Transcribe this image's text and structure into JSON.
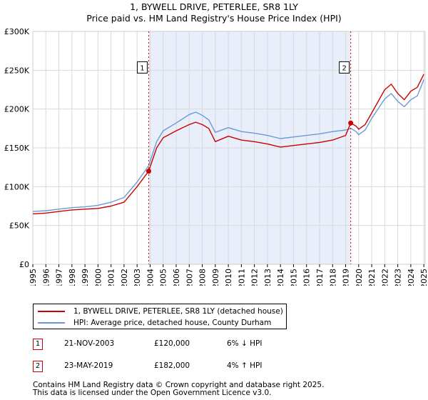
{
  "title": "1, BYWELL DRIVE, PETERLEE, SR8 1LY",
  "subtitle": "Price paid vs. HM Land Registry's House Price Index (HPI)",
  "colors": {
    "property": "#cc0000",
    "hpi": "#6b9ad6",
    "shade": "#e8eefa",
    "marker_line": "#cc0000"
  },
  "legend": {
    "property_label": "1, BYWELL DRIVE, PETERLEE, SR8 1LY (detached house)",
    "hpi_label": "HPI: Average price, detached house, County Durham"
  },
  "transactions": [
    {
      "num": "1",
      "date": "21-NOV-2003",
      "price": "£120,000",
      "change": "6% ↓ HPI"
    },
    {
      "num": "2",
      "date": "23-MAY-2019",
      "price": "£182,000",
      "change": "4% ↑ HPI"
    }
  ],
  "footer": {
    "line1": "Contains HM Land Registry data © Crown copyright and database right 2025.",
    "line2": "This data is licensed under the Open Government Licence v3.0."
  },
  "chart_data": {
    "type": "line",
    "title": "1, BYWELL DRIVE, PETERLEE, SR8 1LY",
    "subtitle": "Price paid vs. HM Land Registry's House Price Index (HPI)",
    "xlabel": "",
    "ylabel": "",
    "xlim": [
      1995,
      2025.1
    ],
    "ylim": [
      0,
      300000
    ],
    "x_ticks": [
      "1995",
      "1996",
      "1997",
      "1998",
      "1999",
      "2000",
      "2001",
      "2002",
      "2003",
      "2004",
      "2005",
      "2006",
      "2007",
      "2008",
      "2009",
      "2010",
      "2011",
      "2012",
      "2013",
      "2014",
      "2015",
      "2016",
      "2017",
      "2018",
      "2019",
      "2020",
      "2021",
      "2022",
      "2023",
      "2024",
      "2025"
    ],
    "y_ticks": [
      {
        "value": 0,
        "label": "£0"
      },
      {
        "value": 50000,
        "label": "£50K"
      },
      {
        "value": 100000,
        "label": "£100K"
      },
      {
        "value": 150000,
        "label": "£150K"
      },
      {
        "value": 200000,
        "label": "£200K"
      },
      {
        "value": 250000,
        "label": "£250K"
      },
      {
        "value": 300000,
        "label": "£300K"
      }
    ],
    "grid": true,
    "shaded_range": [
      2003.89,
      2019.39
    ],
    "sales": [
      {
        "label": "1",
        "x": 2003.89,
        "y": 120000
      },
      {
        "label": "2",
        "x": 2019.39,
        "y": 182000
      }
    ],
    "series": [
      {
        "name": "1, BYWELL DRIVE, PETERLEE, SR8 1LY (detached house)",
        "x": [
          1995,
          1996,
          1997,
          1998,
          1999,
          2000,
          2001,
          2002,
          2003,
          2003.89,
          2004.5,
          2005,
          2006,
          2007,
          2007.5,
          2008,
          2008.5,
          2009,
          2010,
          2011,
          2012,
          2013,
          2014,
          2015,
          2016,
          2017,
          2018,
          2019,
          2019.39,
          2019.8,
          2020,
          2020.5,
          2021,
          2022,
          2022.5,
          2023,
          2023.5,
          2024,
          2024.5,
          2025
        ],
        "y": [
          65000,
          66000,
          68000,
          70000,
          71000,
          72000,
          75000,
          80000,
          100000,
          120000,
          150000,
          163000,
          172000,
          180000,
          183000,
          180000,
          175000,
          158000,
          165000,
          160000,
          158000,
          155000,
          151000,
          153000,
          155000,
          157000,
          160000,
          166000,
          182000,
          178000,
          174000,
          180000,
          195000,
          225000,
          232000,
          220000,
          212000,
          223000,
          228000,
          245000
        ]
      },
      {
        "name": "HPI: Average price, detached house, County Durham",
        "x": [
          1995,
          1996,
          1997,
          1998,
          1999,
          2000,
          2001,
          2002,
          2003,
          2003.89,
          2004.5,
          2005,
          2006,
          2007,
          2007.5,
          2008,
          2008.5,
          2009,
          2010,
          2011,
          2012,
          2013,
          2014,
          2015,
          2016,
          2017,
          2018,
          2019,
          2019.39,
          2019.8,
          2020,
          2020.5,
          2021,
          2022,
          2022.5,
          2023,
          2023.5,
          2024,
          2024.5,
          2025
        ],
        "y": [
          68000,
          69000,
          71000,
          73000,
          74000,
          76000,
          80000,
          86000,
          106000,
          127000,
          158000,
          172000,
          182000,
          193000,
          196000,
          192000,
          186000,
          170000,
          176000,
          171000,
          169000,
          166000,
          162000,
          164000,
          166000,
          168000,
          171000,
          173000,
          175000,
          171000,
          167000,
          173000,
          188000,
          213000,
          220000,
          210000,
          203000,
          212000,
          217000,
          238000
        ]
      }
    ]
  }
}
